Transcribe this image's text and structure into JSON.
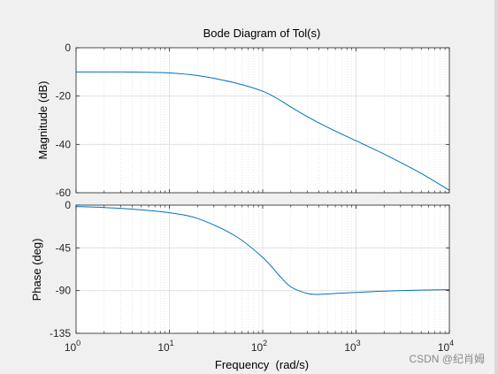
{
  "watermark": "CSDN @纪肖姆",
  "chart_data": {
    "type": "line",
    "title": "Bode Diagram of Tol(s)",
    "xlabel": "Frequency  (rad/s)",
    "xscale": "log",
    "xlim": [
      1,
      10000
    ],
    "xticks": [
      {
        "base": "10",
        "exp": "0"
      },
      {
        "base": "10",
        "exp": "1"
      },
      {
        "base": "10",
        "exp": "2"
      },
      {
        "base": "10",
        "exp": "3"
      },
      {
        "base": "10",
        "exp": "4"
      }
    ],
    "grid": true,
    "line_color": "#0072bd",
    "panels": [
      {
        "name": "magnitude",
        "ylabel": "Magnitude (dB)",
        "ylim": [
          -60,
          0
        ],
        "yticks": [
          "0",
          "-20",
          "-40",
          "-60"
        ],
        "yticks_values": [
          0,
          -20,
          -40,
          -60
        ],
        "series": {
          "x": [
            1,
            2,
            5,
            10,
            20,
            50,
            100,
            150,
            200,
            300,
            500,
            1000,
            2000,
            5000,
            10000
          ],
          "y": [
            -10,
            -10,
            -10.1,
            -10.4,
            -11.5,
            -14.5,
            -18,
            -21.5,
            -24.5,
            -28.5,
            -33,
            -38.5,
            -44,
            -52,
            -59
          ]
        }
      },
      {
        "name": "phase",
        "ylabel": "Phase (deg)",
        "ylim": [
          -135,
          0
        ],
        "yticks": [
          "0",
          "-45",
          "-90",
          "-135"
        ],
        "yticks_values": [
          0,
          -45,
          -90,
          -135
        ],
        "series": {
          "x": [
            1,
            2,
            5,
            10,
            20,
            50,
            100,
            150,
            200,
            300,
            400,
            600,
            1000,
            2000,
            5000,
            10000
          ],
          "y": [
            -1.5,
            -2.5,
            -5,
            -8,
            -14,
            -32,
            -55,
            -74,
            -86,
            -93,
            -94,
            -93,
            -92,
            -90.5,
            -89.5,
            -89
          ]
        }
      }
    ]
  }
}
